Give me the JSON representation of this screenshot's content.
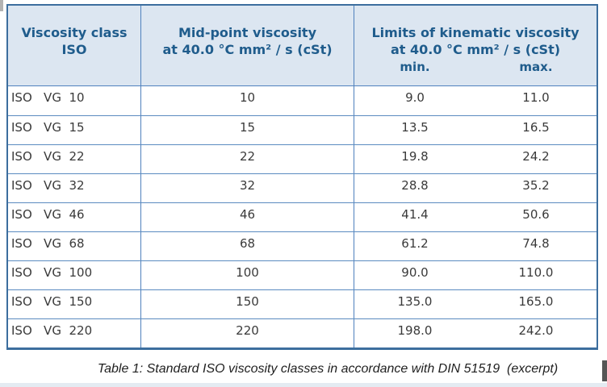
{
  "colors": {
    "header_bg": "#dce6f1",
    "border_blue": "#4f81bd",
    "header_text": "#1f5c8c",
    "body_text": "#3a3a3a"
  },
  "table": {
    "headers": {
      "col1_line1": "Viscosity class",
      "col1_line2": "ISO",
      "col2_line1": "Mid-point viscosity",
      "col2_line2": "at 40.0 °C mm² / s (cSt)",
      "col3_line1": "Limits of kinematic viscosity",
      "col3_line2": "at 40.0 °C mm² / s (cSt)",
      "min_label": "min.",
      "max_label": "max."
    },
    "rows": [
      {
        "class": "ISO   VG  10",
        "mid": "10",
        "min": "9.0",
        "max": "11.0"
      },
      {
        "class": "ISO   VG  15",
        "mid": "15",
        "min": "13.5",
        "max": "16.5"
      },
      {
        "class": "ISO   VG  22",
        "mid": "22",
        "min": "19.8",
        "max": "24.2"
      },
      {
        "class": "ISO   VG  32",
        "mid": "32",
        "min": "28.8",
        "max": "35.2"
      },
      {
        "class": "ISO   VG  46",
        "mid": "46",
        "min": "41.4",
        "max": "50.6"
      },
      {
        "class": "ISO   VG  68",
        "mid": "68",
        "min": "61.2",
        "max": "74.8"
      },
      {
        "class": "ISO   VG  100",
        "mid": "100",
        "min": "90.0",
        "max": "110.0"
      },
      {
        "class": "ISO   VG  150",
        "mid": "150",
        "min": "135.0",
        "max": "165.0"
      },
      {
        "class": "ISO   VG  220",
        "mid": "220",
        "min": "198.0",
        "max": "242.0"
      }
    ]
  },
  "caption": "Table 1: Standard ISO viscosity classes in accordance with DIN 51519  (excerpt)"
}
